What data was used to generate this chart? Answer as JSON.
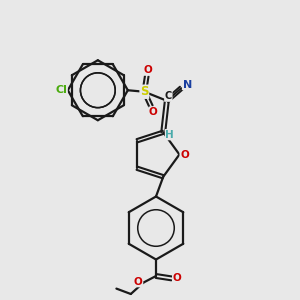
{
  "background_color": "#e8e8e8",
  "bond_color": "#1a1a1a",
  "atom_colors": {
    "N": "#1a3fa0",
    "O": "#cc0000",
    "S": "#cccc00",
    "Cl": "#4aab0e",
    "H": "#4aabab",
    "C": "#1a1a1a"
  },
  "figsize": [
    3.0,
    3.0
  ],
  "dpi": 100
}
